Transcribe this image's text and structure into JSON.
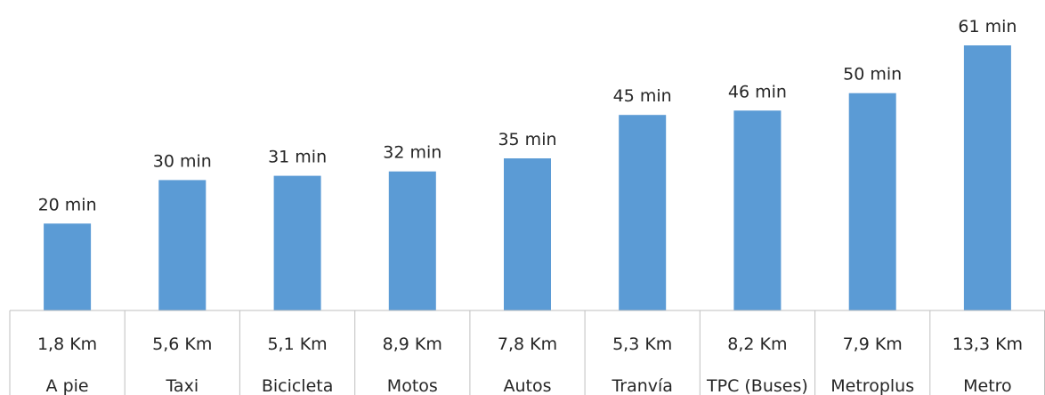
{
  "chart_data": {
    "type": "bar",
    "categories": [
      "A pie",
      "Taxi",
      "Bicicleta",
      "Motos",
      "Autos",
      "Tranvía",
      "TPC (Buses)",
      "Metroplus",
      "Metro"
    ],
    "distances": [
      "1,8 Km",
      "5,6 Km",
      "5,1 Km",
      "8,9 Km",
      "7,8 Km",
      "5,3 Km",
      "8,2 Km",
      "7,9 Km",
      "13,3 Km"
    ],
    "values": [
      20,
      30,
      31,
      32,
      35,
      45,
      46,
      50,
      61
    ],
    "value_labels": [
      "20 min",
      "30 min",
      "31 min",
      "32 min",
      "35 min",
      "45 min",
      "46 min",
      "50 min",
      "61 min"
    ],
    "title": "",
    "xlabel": "",
    "ylabel": "",
    "ylim": [
      0,
      61
    ],
    "grid": false,
    "legend": "none",
    "colors": {
      "bar": "#5b9bd5",
      "table_border": "#bfbfbf",
      "text": "#262626"
    }
  }
}
